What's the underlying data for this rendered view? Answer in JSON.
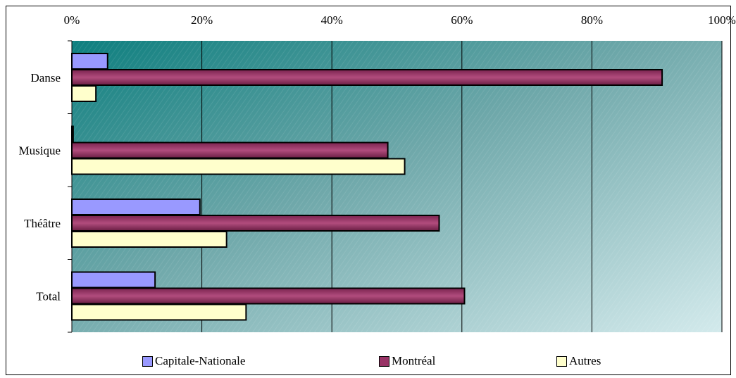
{
  "chart_data": {
    "type": "bar",
    "orientation": "horizontal",
    "stacked": false,
    "categories": [
      "Danse",
      "Musique",
      "Théâtre",
      "Total"
    ],
    "series": [
      {
        "name": "Capitale-Nationale",
        "color": "#9999ff",
        "values": [
          5.5,
          0.2,
          19.7,
          12.8
        ]
      },
      {
        "name": "Montréal",
        "color": "#993366",
        "values": [
          90.8,
          48.6,
          56.5,
          60.4
        ]
      },
      {
        "name": "Autres",
        "color": "#ffffcc",
        "values": [
          3.7,
          51.2,
          23.8,
          26.8
        ]
      }
    ],
    "x_axis": {
      "position": "top",
      "min": 0,
      "max": 100,
      "ticks": [
        "0%",
        "20%",
        "40%",
        "60%",
        "80%",
        "100%"
      ]
    },
    "grid": true,
    "legend_position": "bottom",
    "plot_background": "teal-gradient"
  }
}
